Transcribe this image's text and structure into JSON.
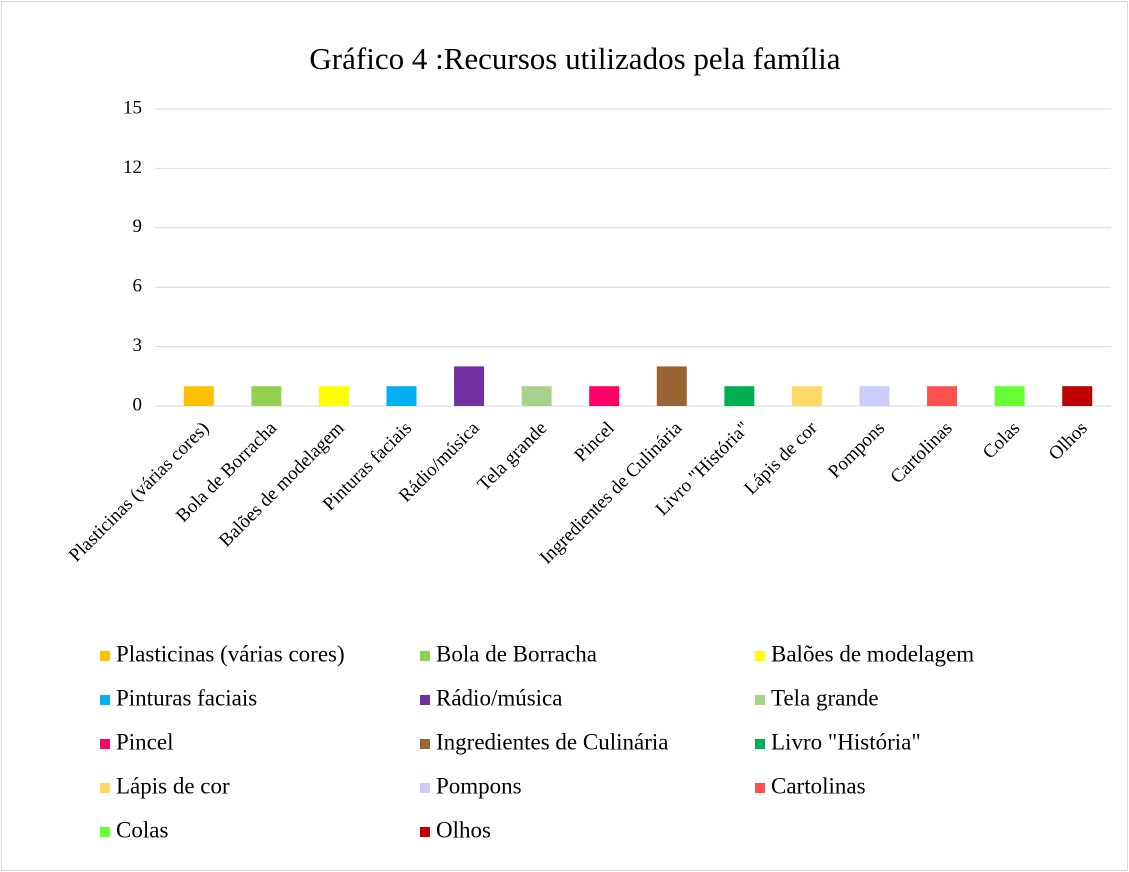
{
  "chart_data": {
    "type": "bar",
    "title": "Gráfico 4 :Recursos utilizados pela família",
    "categories": [
      "Plasticinas (várias cores)",
      "Bola de  Borracha",
      "Balões de modelagem",
      "Pinturas faciais",
      "Rádio/música",
      "Tela grande",
      "Pincel",
      "Ingredientes de Culinária",
      "Livro \"História\"",
      "Lápis de cor",
      "Pompons",
      "Cartolinas",
      "Colas",
      "Olhos"
    ],
    "values": [
      1,
      1,
      1,
      1,
      2,
      1,
      1,
      2,
      1,
      1,
      1,
      1,
      1,
      1
    ],
    "colors": [
      "#ffc000",
      "#92d050",
      "#ffff00",
      "#00b0f0",
      "#7030a0",
      "#a9d18e",
      "#ff0066",
      "#996633",
      "#00b050",
      "#ffd966",
      "#ccccff",
      "#ff5050",
      "#66ff33",
      "#c00000"
    ],
    "ylim": [
      0,
      15
    ],
    "yticks": [
      0,
      3,
      6,
      9,
      12,
      15
    ],
    "grid": true,
    "legend": "bottom"
  }
}
